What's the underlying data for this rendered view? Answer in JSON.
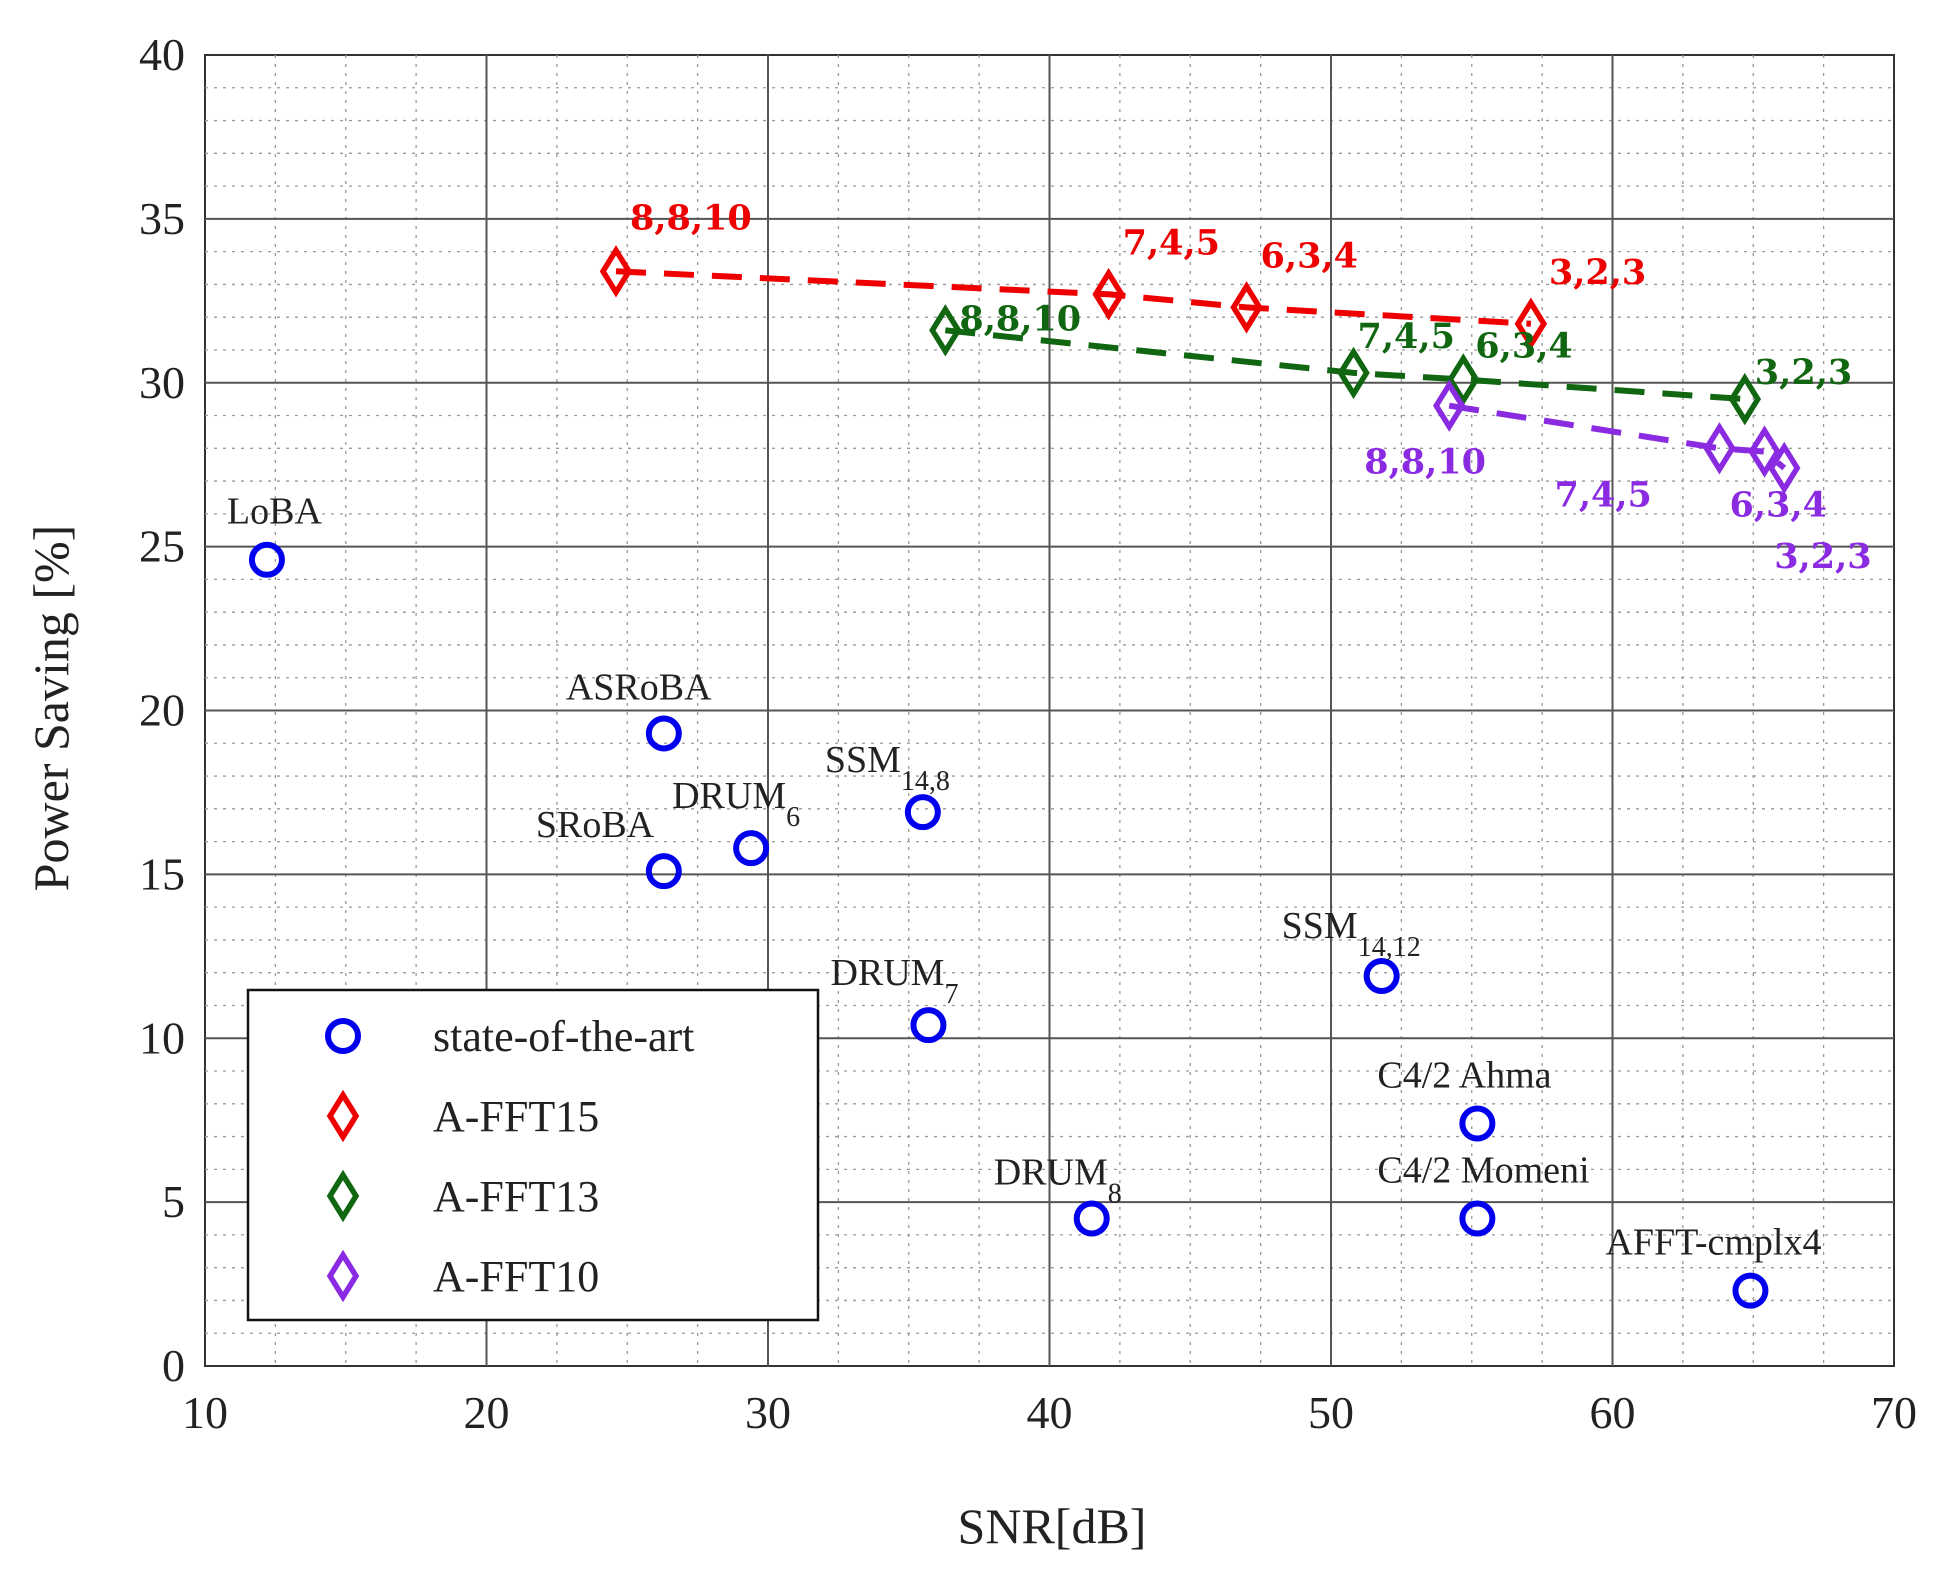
{
  "chart_data": {
    "type": "scatter",
    "xlabel": "SNR[dB]",
    "ylabel": "Power Saving [%]",
    "xlim": [
      10,
      70
    ],
    "ylim": [
      0,
      40
    ],
    "xticks": [
      10,
      20,
      30,
      40,
      50,
      60,
      70
    ],
    "yticks": [
      0,
      5,
      10,
      15,
      20,
      25,
      30,
      35,
      40
    ],
    "grid": true,
    "legend": {
      "placement": "bottom-left",
      "entries": [
        "state-of-the-art",
        "A-FFT15",
        "A-FFT13",
        "A-FFT10"
      ]
    },
    "series": [
      {
        "name": "state-of-the-art",
        "marker": "circle",
        "color": "#0000ee",
        "line": false,
        "points": [
          {
            "x": 12.2,
            "y": 24.6,
            "label": "LoBA",
            "sub": ""
          },
          {
            "x": 26.3,
            "y": 19.3,
            "label": "ASRoBA",
            "sub": ""
          },
          {
            "x": 26.3,
            "y": 15.1,
            "label": "SRoBA",
            "sub": ""
          },
          {
            "x": 29.4,
            "y": 15.8,
            "label": "DRUM",
            "sub": "6"
          },
          {
            "x": 35.5,
            "y": 16.9,
            "label": "SSM",
            "sub": "14,8"
          },
          {
            "x": 35.7,
            "y": 10.4,
            "label": "DRUM",
            "sub": "7"
          },
          {
            "x": 41.5,
            "y": 4.5,
            "label": "DRUM",
            "sub": "8"
          },
          {
            "x": 51.8,
            "y": 11.9,
            "label": "SSM",
            "sub": "14,12"
          },
          {
            "x": 55.2,
            "y": 7.4,
            "label": "C4/2 Ahma",
            "sub": ""
          },
          {
            "x": 55.2,
            "y": 4.5,
            "label": "C4/2 Momeni",
            "sub": ""
          },
          {
            "x": 64.9,
            "y": 2.3,
            "label": "AFFT-cmplx4",
            "sub": ""
          }
        ]
      },
      {
        "name": "A-FFT15",
        "marker": "diamond",
        "color": "#ee0000",
        "line": "dashed",
        "points": [
          {
            "x": 24.6,
            "y": 33.4,
            "label": "8,8,10"
          },
          {
            "x": 42.1,
            "y": 32.7,
            "label": "7,4,5"
          },
          {
            "x": 47.0,
            "y": 32.3,
            "label": "6,3,4"
          },
          {
            "x": 57.1,
            "y": 31.8,
            "label": "3,2,3"
          }
        ]
      },
      {
        "name": "A-FFT13",
        "marker": "diamond",
        "color": "#116611",
        "line": "dashed",
        "points": [
          {
            "x": 36.3,
            "y": 31.6,
            "label": "8,8,10"
          },
          {
            "x": 50.8,
            "y": 30.3,
            "label": "7,4,5"
          },
          {
            "x": 54.7,
            "y": 30.1,
            "label": "6,3,4"
          },
          {
            "x": 64.7,
            "y": 29.5,
            "label": "3,2,3"
          }
        ]
      },
      {
        "name": "A-FFT10",
        "marker": "diamond",
        "color": "#8a2be2",
        "line": "dashed",
        "points": [
          {
            "x": 54.2,
            "y": 29.3,
            "label": "8,8,10"
          },
          {
            "x": 63.8,
            "y": 28.0,
            "label": "7,4,5"
          },
          {
            "x": 65.4,
            "y": 27.9,
            "label": "6,3,4"
          },
          {
            "x": 66.1,
            "y": 27.4,
            "label": "3,2,3"
          }
        ]
      }
    ]
  }
}
